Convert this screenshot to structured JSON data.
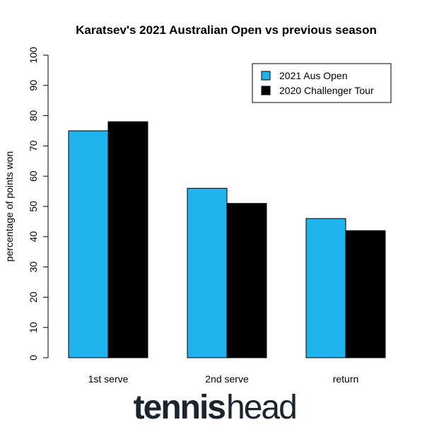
{
  "chart_data": {
    "type": "bar",
    "title": "Karatsev's 2021 Australian Open vs previous season",
    "y_label": "percentage of points won",
    "categories": [
      "1st serve",
      "2nd serve",
      "return"
    ],
    "series": [
      {
        "name": "2021 Aus Open",
        "color": "#1fb4ee",
        "values": [
          75,
          56,
          46
        ]
      },
      {
        "name": "2020 Challenger Tour",
        "color": "#000000",
        "values": [
          78,
          51,
          42
        ]
      }
    ],
    "ylim": [
      0,
      100
    ],
    "yticks": [
      0,
      10,
      20,
      30,
      40,
      50,
      60,
      70,
      80,
      90,
      100
    ],
    "legend": "top-right"
  },
  "logo": {
    "strong": "tennis",
    "light": "head"
  }
}
